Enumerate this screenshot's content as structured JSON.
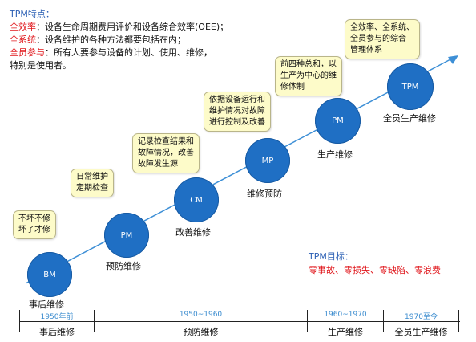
{
  "features": {
    "title": "TPM特点：",
    "items": [
      {
        "key": "全效率",
        "text": "：设备生命周期费用评价和设备综合效率(OEE)；"
      },
      {
        "key": "全系统",
        "text": "：设备维护的各种方法都要包括在内；"
      },
      {
        "key": "全员参与",
        "text": "：所有人要参与设备的计划、使用、维修，"
      }
    ],
    "continuation": "特别是使用者。"
  },
  "stages": [
    {
      "abbr": "BM",
      "label": "事后维修",
      "note": [
        "不坏不修",
        "坏了才修"
      ]
    },
    {
      "abbr": "PM",
      "label": "预防维修",
      "note": [
        "日常维护",
        "定期检查"
      ]
    },
    {
      "abbr": "CM",
      "label": "改善维修",
      "note": [
        "记录检查结果和",
        "故障情况，改善",
        "故障发生源"
      ]
    },
    {
      "abbr": "MP",
      "label": "维修预防",
      "note": [
        "依据设备运行和",
        "维护情况对故障",
        "进行控制及改善"
      ]
    },
    {
      "abbr": "PM",
      "label": "生产维修",
      "note": [
        "前四种总和，以",
        "生产为中心的维",
        "修体制"
      ]
    },
    {
      "abbr": "TPM",
      "label": "全员生产维修",
      "note": [
        "全效率、全系统、",
        "全员参与的综合",
        "管理体系"
      ]
    }
  ],
  "goal": {
    "title": "TPM目标：",
    "text": "零事故、零损失、零缺陷、零浪费"
  },
  "timeline": [
    {
      "period": "1950年前",
      "phase": "事后维修"
    },
    {
      "period": "1950~1960",
      "phase": "预防维修"
    },
    {
      "period": "1960~1970",
      "phase": "生产维修"
    },
    {
      "period": "1970至今",
      "phase": "全员生产维修"
    }
  ],
  "colors": {
    "circle": "#1f6fc4",
    "callout_bg": "#fdfbc9",
    "highlight": "#e0161b",
    "title_blue": "#2b5fb4",
    "timeline_text": "#3b8ccf"
  }
}
